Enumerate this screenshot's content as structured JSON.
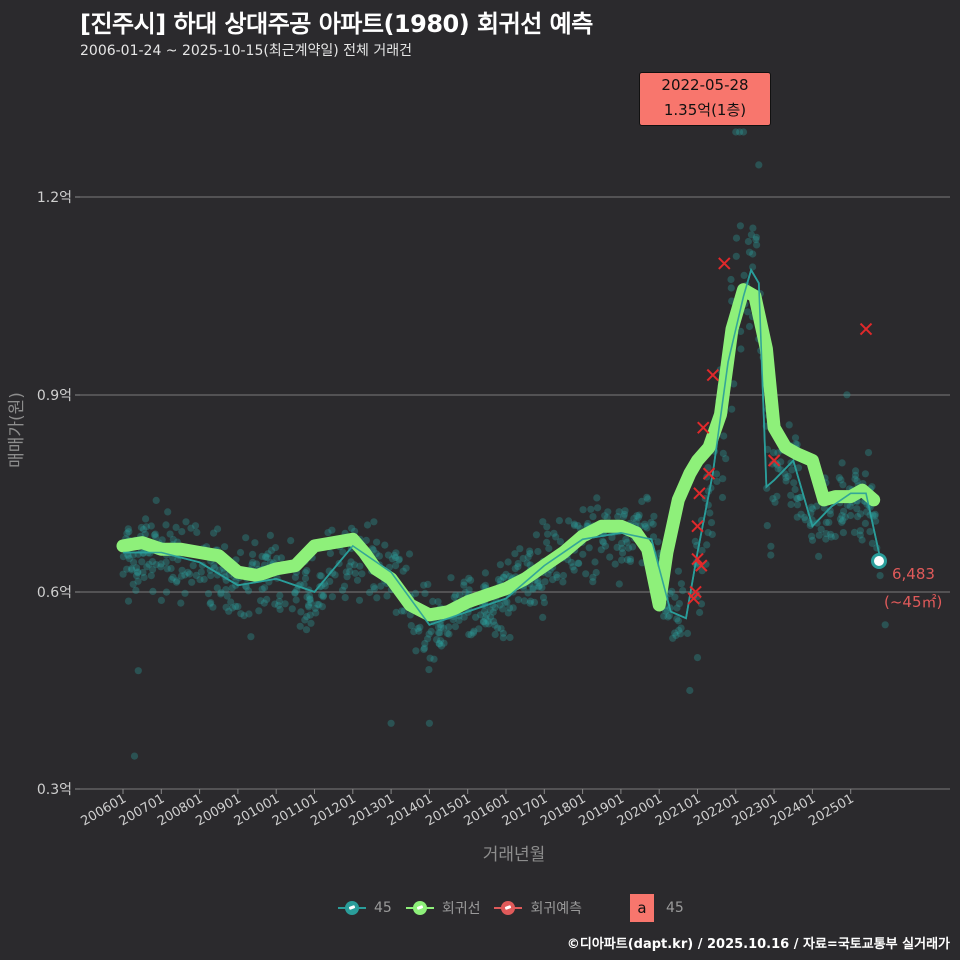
{
  "header": {
    "title": "[진주시] 하대 상대주공 아파트(1980) 회귀선 예측",
    "subtitle": "2006-01-24 ~ 2025-10-15(최근계약일) 전체 거래건"
  },
  "callout": {
    "date": "2022-05-28",
    "value": "1.35억(1층)"
  },
  "end_label": {
    "value": "6,483",
    "area": "(~45㎡)"
  },
  "legend": {
    "items": [
      {
        "label": "45",
        "color": "#2a9d9a"
      },
      {
        "label": "회귀선",
        "color": "#8ef07a"
      },
      {
        "label": "회귀예측",
        "color": "#e05a5a"
      }
    ],
    "text_key": "a",
    "text_label": "45"
  },
  "footer": "©디아파트(dapt.kr) / 2025.10.16 / 자료=국토교통부 실거래가",
  "colors": {
    "background": "#2b2a2d",
    "points": "#2a9d9a",
    "regression": "#8ef07a",
    "prediction": "#e0292b",
    "callout": "#f8766d",
    "gridline": "#6b6b6b"
  },
  "chart_data": {
    "type": "scatter",
    "title": "[진주시] 하대 상대주공 아파트(1980) 회귀선 예측",
    "subtitle": "2006-01-24 ~ 2025-10-15(최근계약일) 전체 거래건",
    "xlabel": "거래년월",
    "ylabel": "매매가(원)",
    "ylim": [
      0.3,
      1.35
    ],
    "yticks": [
      0.3,
      0.6,
      0.9,
      1.2
    ],
    "ytick_labels": [
      "0.3억",
      "0.6억",
      "0.9억",
      "1.2억"
    ],
    "xticks": [
      "200601",
      "200701",
      "200801",
      "200901",
      "201001",
      "201101",
      "201201",
      "201301",
      "201401",
      "201501",
      "201601",
      "201701",
      "201801",
      "201901",
      "202001",
      "202101",
      "202201",
      "202301",
      "202401",
      "202501"
    ],
    "grid": "horizontal major",
    "legend_position": "bottom",
    "series": [
      {
        "name": "회귀선",
        "type": "line",
        "x": [
          2006.0,
          2006.5,
          2007.0,
          2007.5,
          2008.0,
          2008.5,
          2009.0,
          2009.5,
          2010.0,
          2010.5,
          2011.0,
          2011.5,
          2012.0,
          2012.3,
          2012.6,
          2013.0,
          2013.5,
          2014.0,
          2014.5,
          2015.0,
          2015.5,
          2016.0,
          2016.5,
          2017.0,
          2017.5,
          2018.0,
          2018.5,
          2019.0,
          2019.4,
          2019.7,
          2020.0,
          2020.2,
          2020.5,
          2020.8,
          2021.0,
          2021.3,
          2021.6,
          2021.9,
          2022.2,
          2022.5,
          2022.8,
          2023.0,
          2023.3,
          2023.6,
          2024.0,
          2024.3,
          2024.6,
          2025.0,
          2025.3,
          2025.6
        ],
        "values": [
          0.67,
          0.675,
          0.665,
          0.665,
          0.66,
          0.655,
          0.63,
          0.625,
          0.635,
          0.64,
          0.67,
          0.675,
          0.68,
          0.66,
          0.635,
          0.62,
          0.58,
          0.565,
          0.57,
          0.585,
          0.595,
          0.605,
          0.62,
          0.64,
          0.66,
          0.685,
          0.7,
          0.7,
          0.69,
          0.665,
          0.58,
          0.66,
          0.74,
          0.78,
          0.8,
          0.82,
          0.87,
          1.0,
          1.06,
          1.05,
          0.97,
          0.85,
          0.82,
          0.81,
          0.8,
          0.74,
          0.745,
          0.745,
          0.755,
          0.74
        ]
      },
      {
        "name": "45",
        "type": "line+scatter",
        "x": [
          2006.0,
          2007.0,
          2008.0,
          2009.0,
          2010.0,
          2011.0,
          2012.0,
          2013.0,
          2014.0,
          2015.0,
          2016.0,
          2017.0,
          2018.0,
          2019.0,
          2019.8,
          2020.3,
          2020.7,
          2021.0,
          2021.4,
          2021.8,
          2022.2,
          2022.4,
          2022.6,
          2022.8,
          2023.0,
          2023.5,
          2024.0,
          2024.5,
          2025.0,
          2025.4,
          2025.78
        ],
        "values": [
          0.66,
          0.66,
          0.645,
          0.61,
          0.62,
          0.6,
          0.67,
          0.63,
          0.55,
          0.57,
          0.59,
          0.64,
          0.68,
          0.69,
          0.68,
          0.57,
          0.56,
          0.66,
          0.78,
          0.95,
          1.05,
          1.09,
          1.07,
          0.76,
          0.77,
          0.8,
          0.7,
          0.73,
          0.75,
          0.75,
          0.6483
        ]
      },
      {
        "name": "회귀예측",
        "type": "scatter",
        "marker": "x",
        "x": [
          2020.9,
          2020.95,
          2021.0,
          2021.0,
          2021.05,
          2021.1,
          2021.15,
          2021.3,
          2021.4,
          2021.7,
          2023.0,
          2025.4
        ],
        "values": [
          0.59,
          0.6,
          0.65,
          0.7,
          0.75,
          0.64,
          0.85,
          0.78,
          0.93,
          1.1,
          0.8,
          1.0
        ]
      }
    ],
    "annotations": [
      {
        "text": "2022-05-28 1.35억(1층)",
        "x": 2022.4,
        "y": 1.35
      },
      {
        "text": "6,483 (~45㎡)",
        "x": 2025.78,
        "y": 0.6483
      }
    ]
  }
}
